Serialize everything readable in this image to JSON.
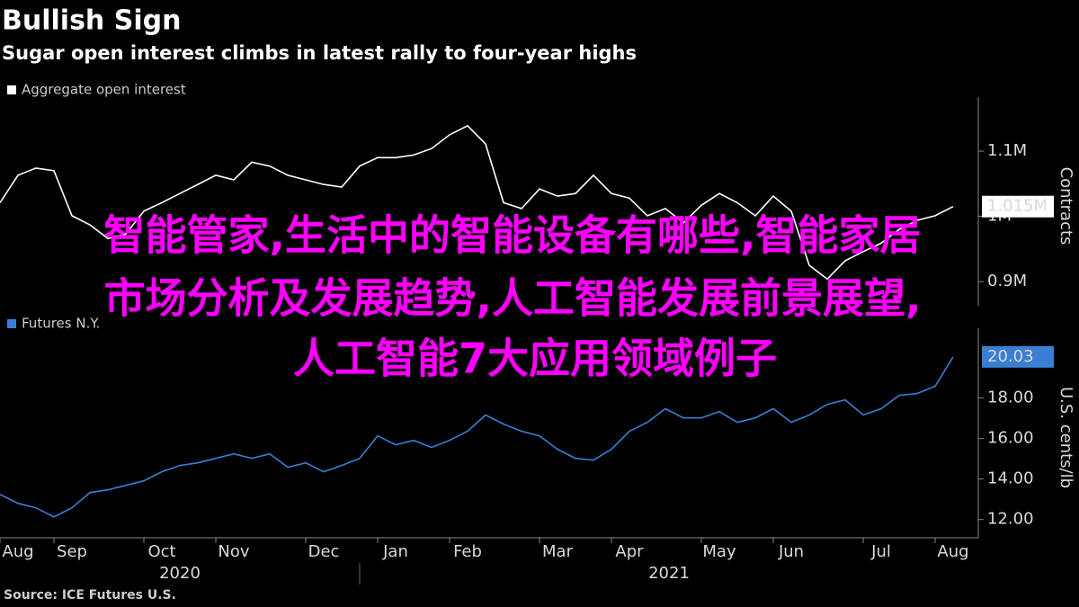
{
  "chart_data": [
    {
      "type": "line",
      "title": "Bullish Sign",
      "subtitle": "Sugar open interest climbs in latest rally to four-year highs",
      "y_label": "Contracts",
      "series": [
        {
          "name": "Aggregate open interest",
          "color": "#ffffff",
          "values": [
            1021000,
            1063000,
            1074000,
            1070000,
            1001000,
            987000,
            966000,
            973000,
            1008000,
            1021000,
            1035000,
            1049000,
            1063000,
            1056000,
            1083000,
            1077000,
            1063000,
            1056000,
            1049000,
            1045000,
            1077000,
            1090000,
            1090000,
            1094000,
            1104000,
            1125000,
            1139000,
            1111000,
            1021000,
            1012000,
            1042000,
            1031000,
            1035000,
            1063000,
            1035000,
            1028000,
            1001000,
            1012000,
            990000,
            1017000,
            1035000,
            1021000,
            1001000,
            1031000,
            1008000,
            925000,
            904000,
            932000,
            946000,
            959000,
            980000,
            994000,
            1001000,
            1015000
          ],
          "value_labels": [
            null,
            null,
            null,
            null,
            null,
            null,
            null,
            null,
            null,
            null,
            null,
            null,
            null,
            null,
            null,
            null,
            null,
            null,
            null,
            null,
            null,
            null,
            null,
            null,
            null,
            null,
            null,
            null,
            null,
            null,
            null,
            null,
            null,
            null,
            null,
            null,
            null,
            null,
            null,
            null,
            null,
            null,
            null,
            null,
            null,
            null,
            null,
            null,
            null,
            null,
            null,
            null,
            null,
            "1.015M"
          ]
        }
      ],
      "ylim": [
        863000,
        1169000
      ],
      "yticks": [
        {
          "value": 900000,
          "label": "0.9M"
        },
        {
          "value": 1000000,
          "label": "1M"
        },
        {
          "value": 1100000,
          "label": "1.1M"
        }
      ]
    },
    {
      "type": "line",
      "y_label": "U.S. cents/lb",
      "categories": [
        null,
        "Aug",
        null,
        null,
        "Sep",
        null,
        null,
        null,
        null,
        "Oct",
        null,
        null,
        null,
        "Nov",
        null,
        null,
        null,
        null,
        "Dec",
        null,
        null,
        null,
        "Jan",
        null,
        null,
        null,
        "Feb",
        null,
        null,
        null,
        null,
        "Mar",
        null,
        null,
        null,
        "Apr",
        null,
        null,
        null,
        null,
        "May",
        null,
        null,
        null,
        "Jun",
        null,
        null,
        null,
        null,
        "Jul",
        null,
        null,
        null,
        "Aug"
      ],
      "x_groups": [
        "2020",
        "2021"
      ],
      "series": [
        {
          "name": "Futures N.Y.",
          "color": "#3a7fd5",
          "values": [
            13.24,
            12.8,
            12.58,
            12.13,
            12.58,
            13.33,
            13.47,
            13.69,
            13.91,
            14.36,
            14.67,
            14.8,
            15.02,
            15.24,
            15.02,
            15.24,
            14.58,
            14.8,
            14.36,
            14.67,
            15.02,
            16.13,
            15.69,
            15.91,
            15.56,
            15.91,
            16.36,
            17.16,
            16.71,
            16.36,
            16.13,
            15.47,
            15.02,
            14.93,
            15.47,
            16.36,
            16.8,
            17.47,
            17.02,
            17.02,
            17.33,
            16.8,
            17.02,
            17.47,
            16.8,
            17.16,
            17.69,
            17.91,
            17.16,
            17.47,
            18.13,
            18.22,
            18.58,
            20.03
          ]
        }
      ],
      "ylim": [
        11.1,
        21.0
      ],
      "yticks": [
        {
          "value": 12,
          "label": "12.00"
        },
        {
          "value": 14,
          "label": "14.00"
        },
        {
          "value": 16,
          "label": "16.00"
        },
        {
          "value": 18,
          "label": "18.00"
        }
      ],
      "source": "Source: ICE Futures U.S."
    }
  ],
  "overlay": {
    "lines": [
      "智能管家,生活中的智能设备有哪些,智能家居",
      "市场分析及发展趋势,人工智能发展前景展望,",
      "人工智能7大应用领域例子"
    ]
  }
}
